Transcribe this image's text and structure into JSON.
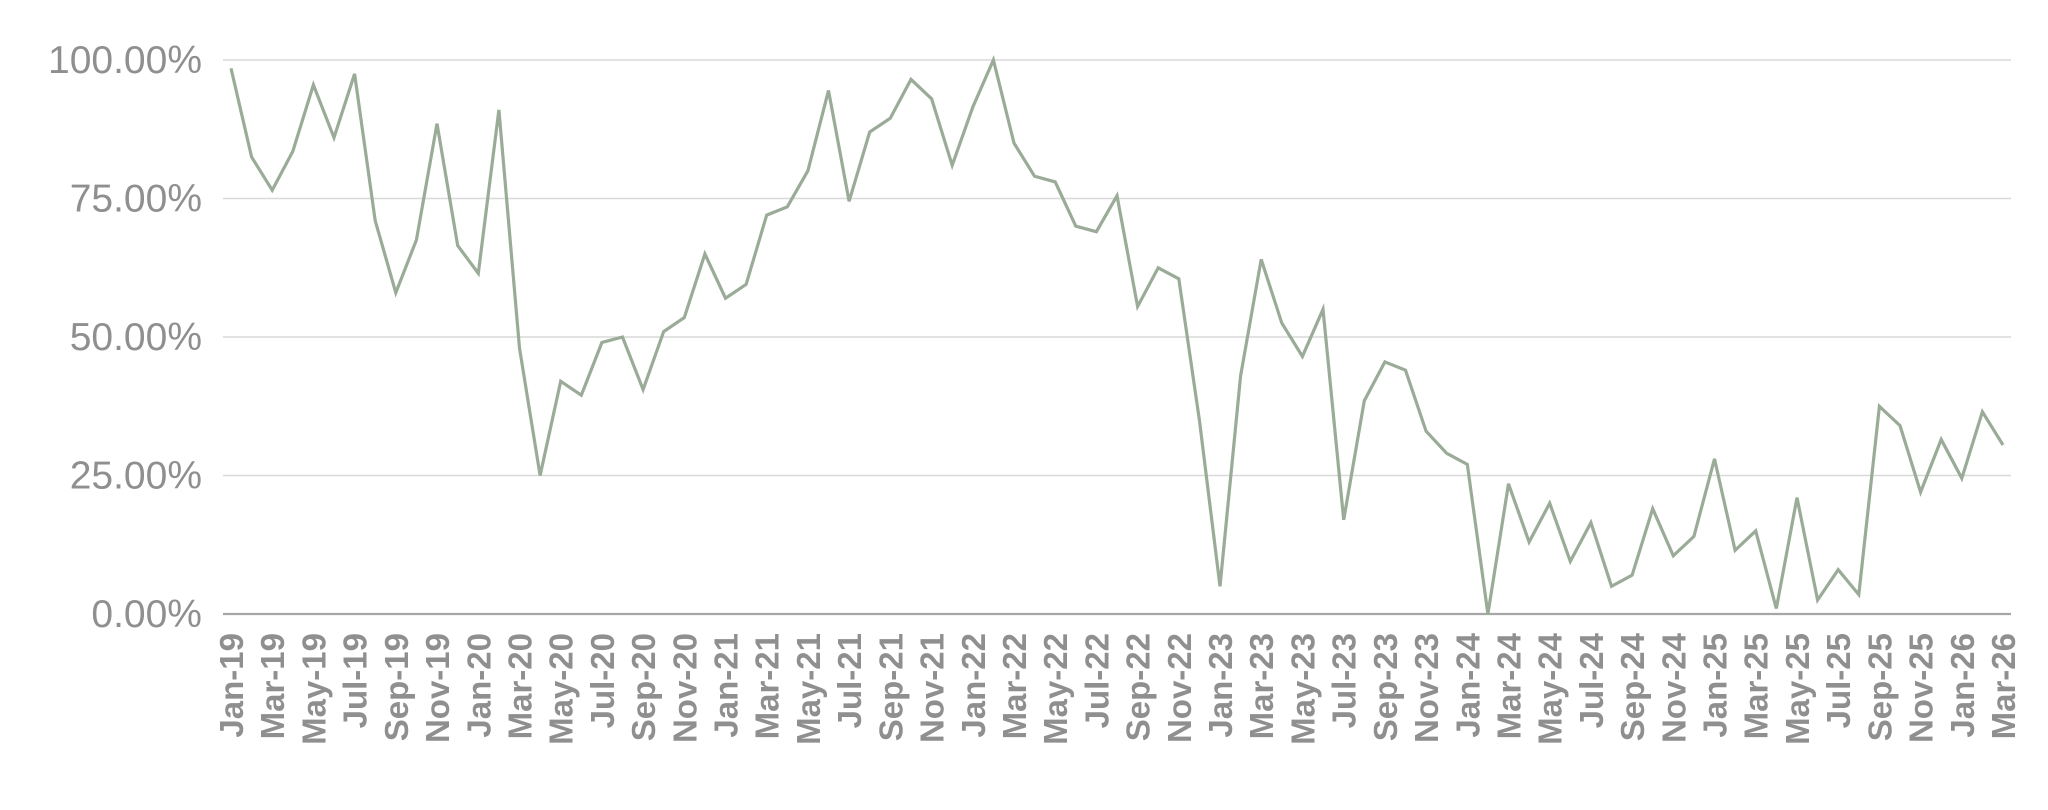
{
  "chart_data": {
    "type": "line",
    "title": "",
    "xlabel": "",
    "ylabel": "",
    "ylim": [
      0,
      1
    ],
    "y_tick_values": [
      0,
      0.25,
      0.5,
      0.75,
      1.0
    ],
    "y_tick_labels": [
      "0.00%",
      "25.00%",
      "50.00%",
      "75.00%",
      "100.00%"
    ],
    "grid": true,
    "legend": "none",
    "colors": {
      "line": "#9aab98",
      "grid": "#d9d9d9",
      "axis": "#a6a6a6",
      "text": "#8f8f8f"
    },
    "x": [
      "Jan-19",
      "Feb-19",
      "Mar-19",
      "Apr-19",
      "May-19",
      "Jun-19",
      "Jul-19",
      "Aug-19",
      "Sep-19",
      "Oct-19",
      "Nov-19",
      "Dec-19",
      "Jan-20",
      "Feb-20",
      "Mar-20",
      "Apr-20",
      "May-20",
      "Jun-20",
      "Jul-20",
      "Aug-20",
      "Sep-20",
      "Oct-20",
      "Nov-20",
      "Dec-20",
      "Jan-21",
      "Feb-21",
      "Mar-21",
      "Apr-21",
      "May-21",
      "Jun-21",
      "Jul-21",
      "Aug-21",
      "Sep-21",
      "Oct-21",
      "Nov-21",
      "Dec-21",
      "Jan-22",
      "Feb-22",
      "Mar-22",
      "Apr-22",
      "May-22",
      "Jun-22",
      "Jul-22",
      "Aug-22",
      "Sep-22",
      "Oct-22",
      "Nov-22",
      "Dec-22",
      "Jan-23",
      "Feb-23",
      "Mar-23",
      "Apr-23",
      "May-23",
      "Jun-23",
      "Jul-23",
      "Aug-23",
      "Sep-23",
      "Oct-23",
      "Nov-23",
      "Dec-23",
      "Jan-24",
      "Feb-24",
      "Mar-24",
      "Apr-24",
      "May-24",
      "Jun-24",
      "Jul-24",
      "Aug-24",
      "Sep-24",
      "Oct-24",
      "Nov-24",
      "Dec-24",
      "Jan-25",
      "Feb-25",
      "Mar-25",
      "Apr-25",
      "May-25",
      "Jun-25",
      "Jul-25",
      "Aug-25",
      "Sep-25",
      "Oct-25",
      "Nov-25",
      "Dec-25",
      "Jan-26",
      "Feb-26",
      "Mar-26"
    ],
    "x_tick_labels": [
      "Jan-19",
      "Mar-19",
      "May-19",
      "Jul-19",
      "Sep-19",
      "Nov-19",
      "Jan-20",
      "Mar-20",
      "May-20",
      "Jul-20",
      "Sep-20",
      "Nov-20",
      "Jan-21",
      "Mar-21",
      "May-21",
      "Jul-21",
      "Sep-21",
      "Nov-21",
      "Jan-22",
      "Mar-22",
      "May-22",
      "Jul-22",
      "Sep-22",
      "Nov-22",
      "Jan-23",
      "Mar-23",
      "May-23",
      "Jul-23",
      "Sep-23",
      "Nov-23",
      "Jan-24",
      "Mar-24",
      "May-24",
      "Jul-24",
      "Sep-24",
      "Nov-24",
      "Jan-25",
      "Mar-25",
      "May-25",
      "Jul-25",
      "Sep-25",
      "Nov-25",
      "Jan-26",
      "Mar-26"
    ],
    "series": [
      {
        "values": [
          0.985,
          0.825,
          0.765,
          0.835,
          0.955,
          0.86,
          0.975,
          0.71,
          0.58,
          0.675,
          0.885,
          0.665,
          0.615,
          0.91,
          0.48,
          0.25,
          0.42,
          0.395,
          0.49,
          0.5,
          0.405,
          0.51,
          0.535,
          0.65,
          0.57,
          0.595,
          0.72,
          0.735,
          0.8,
          0.945,
          0.745,
          0.87,
          0.895,
          0.965,
          0.93,
          0.81,
          0.915,
          1.0,
          0.85,
          0.79,
          0.78,
          0.7,
          0.69,
          0.755,
          0.555,
          0.625,
          0.605,
          0.35,
          0.05,
          0.43,
          0.64,
          0.525,
          0.465,
          0.55,
          0.17,
          0.385,
          0.455,
          0.44,
          0.33,
          0.29,
          0.27,
          0.0,
          0.235,
          0.13,
          0.2,
          0.095,
          0.165,
          0.05,
          0.07,
          0.19,
          0.105,
          0.14,
          0.28,
          0.115,
          0.15,
          0.01,
          0.21,
          0.025,
          0.08,
          0.035,
          0.375,
          0.34,
          0.22,
          0.315,
          0.245,
          0.365,
          0.305
        ]
      }
    ]
  }
}
